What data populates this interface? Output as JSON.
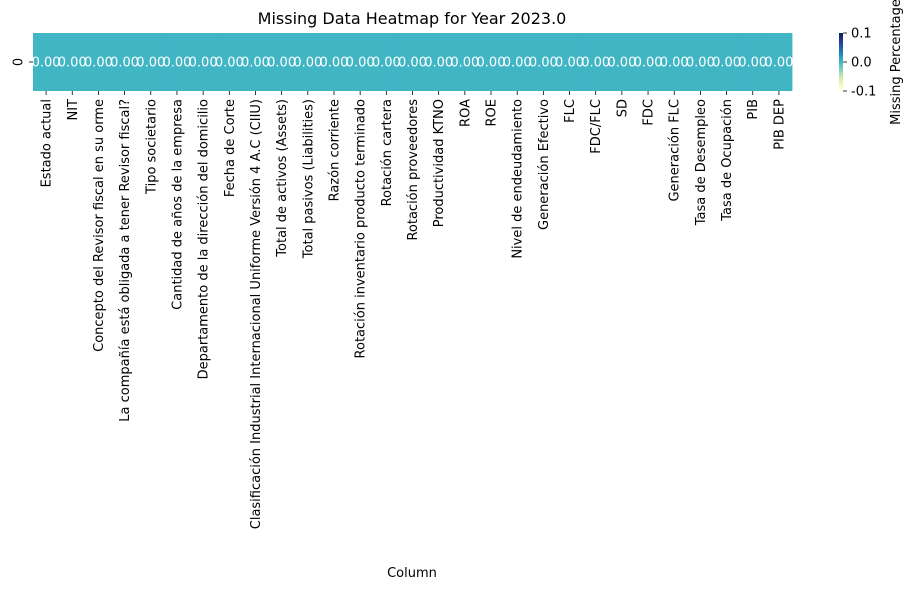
{
  "chart_data": {
    "type": "heatmap",
    "title": "Missing Data Heatmap for Year 2023.0",
    "xlabel": "Column",
    "ylabel": "",
    "rows": [
      "0"
    ],
    "columns": [
      "Estado actual",
      "NIT",
      "Concepto del Revisor fiscal en su orme",
      "La compañía está obligada a tener Revisor fiscal?",
      "Tipo societario",
      "Cantidad de años de la empresa",
      "Departamento de la dirección del domicilio",
      "Fecha de Corte",
      "Clasificación Industrial Internacional Uniforme Versión 4 A.C (CIIU)",
      "Total de activos (Assets)",
      "Total pasivos (Liabilities)",
      "Razón corriente",
      "Rotación inventario producto terminado",
      "Rotación cartera",
      "Rotación proveedores",
      "Productividad KTNO",
      "ROA",
      "ROE",
      "Nivel de endeudamiento",
      "Generación Efectivo",
      "FLC",
      "FDC/FLC",
      "SD",
      "FDC",
      "Generación FLC",
      "Tasa de Desempleo",
      "Tasa de Ocupación",
      "PIB",
      "PIB DEP"
    ],
    "values": [
      [
        0,
        0,
        0,
        0,
        0,
        0,
        0,
        0,
        0,
        0,
        0,
        0,
        0,
        0,
        0,
        0,
        0,
        0,
        0,
        0,
        0,
        0,
        0,
        0,
        0,
        0,
        0,
        0,
        0
      ]
    ],
    "cell_labels": [
      "0.00",
      "0.00",
      "0.00",
      "0.00",
      "0.00",
      "0.00",
      "0.00",
      "0.00",
      "0.00",
      "0.00",
      "0.00",
      "0.00",
      "0.00",
      "0.00",
      "0.00",
      "0.00",
      "0.00",
      "0.00",
      "0.00",
      "0.00",
      "0.00",
      "0.00",
      "0.00",
      "0.00",
      "0.00",
      "0.00",
      "0.00",
      "0.00",
      "0.00"
    ],
    "colormap": "YlGnBu",
    "cell_color": "#40b5c4",
    "colorbar": {
      "label": "Missing Percentage",
      "range": [
        -0.1,
        0.1
      ],
      "ticks": [
        "0.1",
        "0.0",
        "-0.1"
      ],
      "colors": [
        "#081d58",
        "#253494",
        "#225ea8",
        "#1d91c0",
        "#41b6c4",
        "#7fcdbb",
        "#c7e9b4",
        "#edf8b1",
        "#ffffd9"
      ]
    }
  }
}
